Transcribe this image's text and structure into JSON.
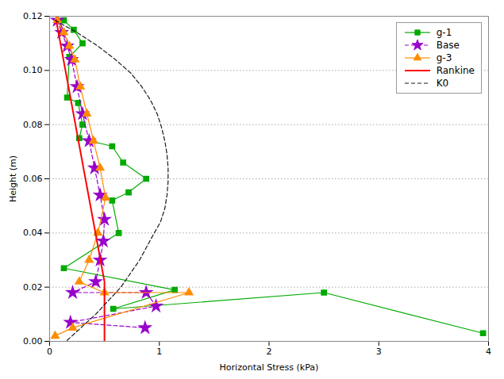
{
  "chart_data": {
    "type": "line",
    "xlabel": "Horizontal Stress (kPa)",
    "ylabel": "Height (m)",
    "xlim": [
      0,
      4
    ],
    "ylim": [
      0,
      0.12
    ],
    "xticks": [
      0,
      1,
      2,
      3,
      4
    ],
    "yticks": [
      {
        "value": 0,
        "label": "0.00"
      },
      0.02,
      0.04,
      0.06,
      0.08,
      {
        "value": 0.1,
        "label": "0.10"
      },
      0.12
    ],
    "grid": "y",
    "legend": "upper right",
    "series": [
      {
        "name": "g-1",
        "color": "#00AA00",
        "marker": "square",
        "line_style": "solid",
        "x": [
          0.13,
          0.22,
          0.3,
          0.18,
          0.16,
          0.26,
          0.3,
          0.27,
          0.57,
          0.67,
          0.88,
          0.72,
          0.57,
          0.63,
          0.13,
          1.14,
          0.58,
          2.5,
          3.95
        ],
        "values": [
          0.1185,
          0.115,
          0.11,
          0.105,
          0.09,
          0.088,
          0.08,
          0.075,
          0.072,
          0.066,
          0.06,
          0.055,
          0.052,
          0.04,
          0.027,
          0.019,
          0.012,
          0.018,
          0.003
        ]
      },
      {
        "name": "Base",
        "color": "#9900CC",
        "marker": "star",
        "line_style": "dashed",
        "x": [
          0.07,
          0.11,
          0.16,
          0.2,
          0.25,
          0.3,
          0.36,
          0.41,
          0.46,
          0.5,
          0.49,
          0.46,
          0.42,
          0.21,
          0.88,
          0.97,
          0.19,
          0.87
        ],
        "values": [
          0.1185,
          0.114,
          0.109,
          0.104,
          0.094,
          0.084,
          0.074,
          0.064,
          0.054,
          0.045,
          0.037,
          0.03,
          0.022,
          0.018,
          0.018,
          0.013,
          0.007,
          0.005
        ]
      },
      {
        "name": "g-3",
        "color": "#FF8C00",
        "marker": "triangle",
        "line_style": "solid",
        "x": [
          0.07,
          0.13,
          0.18,
          0.23,
          0.28,
          0.34,
          0.4,
          0.46,
          0.51,
          0.44,
          0.36,
          0.27,
          0.5,
          1.27,
          0.21,
          0.05
        ],
        "values": [
          0.1185,
          0.114,
          0.109,
          0.104,
          0.094,
          0.084,
          0.074,
          0.064,
          0.053,
          0.04,
          0.03,
          0.022,
          0.018,
          0.018,
          0.005,
          0.002
        ]
      },
      {
        "name": "Rankine",
        "color": "#FF0000",
        "marker": "none",
        "line_style": "solid",
        "x": [
          0.06,
          0.5,
          0.5
        ],
        "values": [
          0.1185,
          0.022,
          0.0
        ]
      },
      {
        "name": "K0",
        "color": "#1A1A1A",
        "marker": "none",
        "line_style": "dashed",
        "x": [
          0.05,
          0.25,
          0.44,
          0.6,
          0.74,
          0.84,
          0.92,
          0.98,
          1.02,
          1.05,
          1.07,
          1.08,
          1.08,
          1.07,
          1.05,
          1.01,
          0.94,
          0.82,
          0.65,
          0.42,
          0.15
        ],
        "values": [
          0.1185,
          0.114,
          0.109,
          0.104,
          0.099,
          0.094,
          0.089,
          0.084,
          0.079,
          0.074,
          0.069,
          0.064,
          0.059,
          0.054,
          0.049,
          0.044,
          0.039,
          0.03,
          0.02,
          0.01,
          0.0
        ]
      }
    ]
  }
}
